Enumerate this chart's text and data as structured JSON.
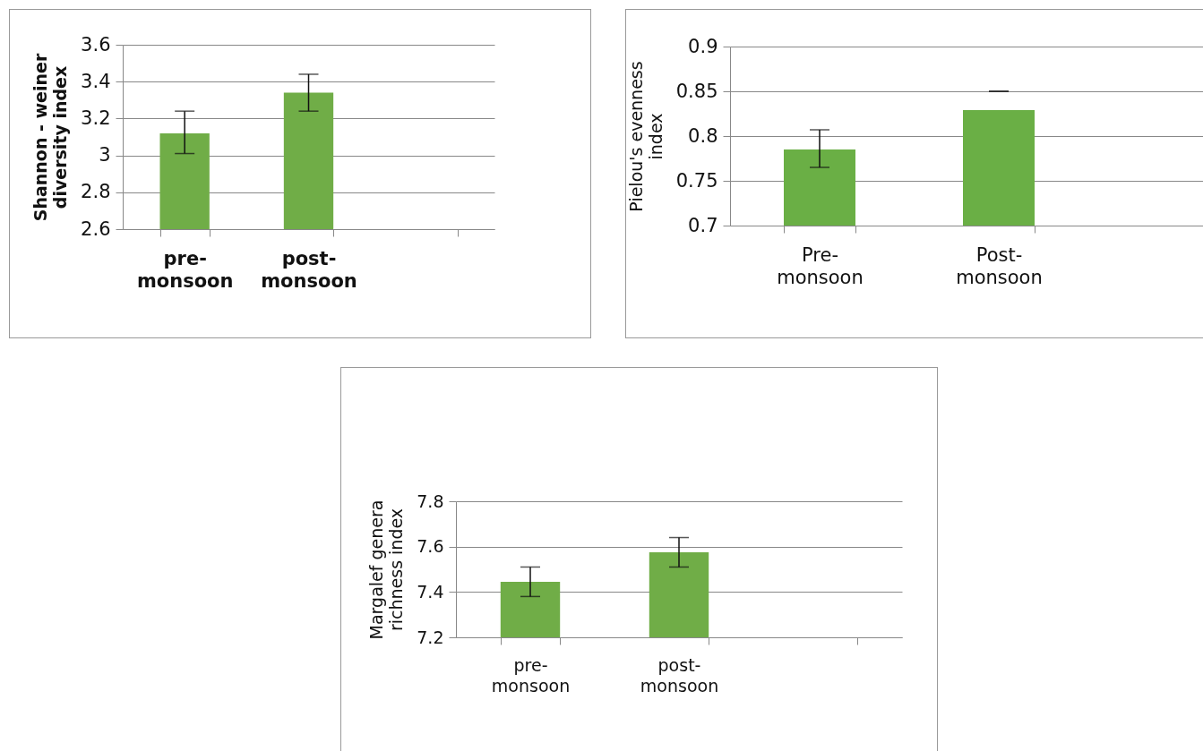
{
  "chart_data": [
    {
      "type": "bar",
      "categories": [
        "pre- monsoon",
        "post- monsoon",
        null
      ],
      "values": [
        3.12,
        3.34,
        null
      ],
      "errors": [
        [
          3.01,
          3.24
        ],
        [
          3.24,
          3.44
        ],
        null
      ],
      "color": "#70ad47",
      "ylabel": "Shannon - weiner\ndiversity index",
      "ylim": [
        2.6,
        3.6
      ],
      "yticks": [
        2.6,
        2.8,
        3,
        3.2,
        3.4,
        3.6
      ],
      "grid": "y"
    },
    {
      "type": "bar",
      "categories": [
        "Pre- monsoon",
        "Post- monsoon",
        null
      ],
      "values": [
        0.785,
        0.829,
        null
      ],
      "errors": [
        [
          0.765,
          0.807
        ],
        [
          0.85,
          0.85
        ],
        null
      ],
      "color": "#6aaf45",
      "ylabel": "Pielou's evenness\nindex",
      "ylim": [
        0.7,
        0.9
      ],
      "yticks": [
        0.7,
        0.75,
        0.8,
        0.85,
        0.9
      ],
      "grid": "y"
    },
    {
      "type": "bar",
      "categories": [
        "pre- monsoon",
        "post- monsoon",
        null
      ],
      "values": [
        7.445,
        7.575,
        null
      ],
      "errors": [
        [
          7.38,
          7.51
        ],
        [
          7.51,
          7.64
        ],
        null
      ],
      "color": "#70ad47",
      "ylabel": "Margalef genera\nrichness index",
      "ylim": [
        7.2,
        7.8
      ],
      "yticks": [
        7.2,
        7.4,
        7.6,
        7.8
      ],
      "grid": "y"
    }
  ]
}
